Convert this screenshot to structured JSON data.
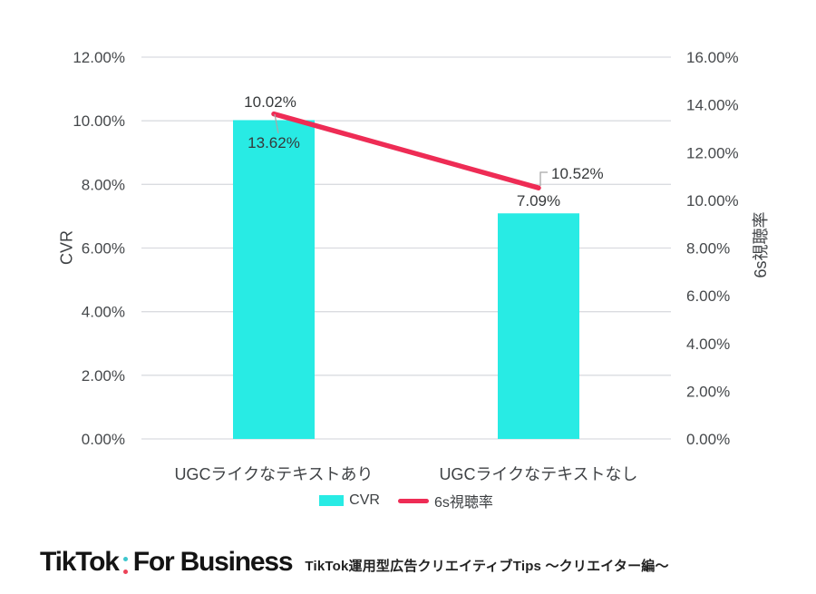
{
  "chart_data": {
    "type": "combo-bar-line",
    "categories": [
      "UGCライクなテキストあり",
      "UGCライクなテキストなし"
    ],
    "series": [
      {
        "name": "CVR",
        "type": "bar",
        "axis": "left",
        "values": [
          10.02,
          7.09
        ],
        "labels": [
          "10.02%",
          "7.09%"
        ],
        "color": "#28EBE4"
      },
      {
        "name": "6s視聴率",
        "type": "line",
        "axis": "right",
        "values": [
          13.62,
          10.52
        ],
        "labels": [
          "13.62%",
          "10.52%"
        ],
        "color": "#EE2C55"
      }
    ],
    "left_axis": {
      "title": "CVR",
      "min": 0,
      "max": 12,
      "ticks": [
        "0.00%",
        "2.00%",
        "4.00%",
        "6.00%",
        "8.00%",
        "10.00%",
        "12.00%"
      ]
    },
    "right_axis": {
      "title": "6s視聴率",
      "min": 0,
      "max": 16,
      "ticks": [
        "0.00%",
        "2.00%",
        "4.00%",
        "6.00%",
        "8.00%",
        "10.00%",
        "12.00%",
        "14.00%",
        "16.00%"
      ]
    },
    "grid": true,
    "legend_position": "bottom"
  },
  "footer": {
    "logo_text": "TikTok",
    "logo_suffix": "For Business",
    "caption": "TikTok運用型広告クリエイティブTips ～クリエイター編～"
  },
  "colors": {
    "bar": "#28EBE4",
    "line": "#EE2C55",
    "grid": "#DADCE0",
    "leader": "#A8A8A8",
    "logo_dot_top": "#3EC6CD",
    "logo_dot_bottom": "#EC4258"
  }
}
